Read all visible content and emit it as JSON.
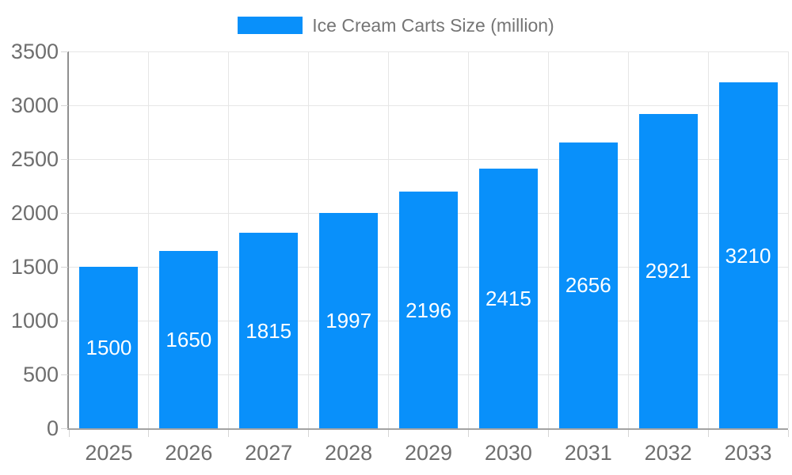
{
  "chart_data": {
    "type": "bar",
    "title": "Ice Cream Carts Size (million)",
    "categories": [
      "2025",
      "2026",
      "2027",
      "2028",
      "2029",
      "2030",
      "2031",
      "2032",
      "2033"
    ],
    "values": [
      1500,
      1650,
      1815,
      1997,
      2196,
      2415,
      2656,
      2921,
      3210
    ],
    "xlabel": "",
    "ylabel": "",
    "ylim": [
      0,
      3500
    ],
    "ytick_step": 500,
    "grid": true,
    "legend_position": "top-center",
    "colors": {
      "bar": "#0990fa",
      "bar_label": "#ffffff",
      "legend_text": "#757575",
      "tick_label": "#6e6e6e",
      "axis_line": "#999999",
      "gridline": "#e6e6e6",
      "tick_mark": "#d6d6d6"
    }
  }
}
